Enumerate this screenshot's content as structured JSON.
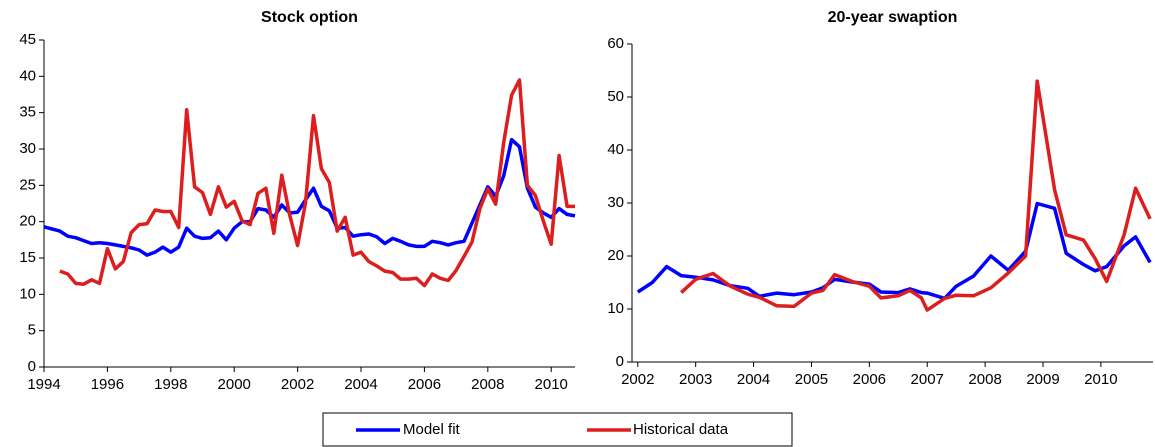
{
  "chart_data": [
    {
      "type": "line",
      "title": "Stock option",
      "x": [
        1994,
        1994.25,
        1994.5,
        1994.75,
        1995,
        1995.25,
        1995.5,
        1995.75,
        1996,
        1996.25,
        1996.5,
        1996.75,
        1997,
        1997.25,
        1997.5,
        1997.75,
        1998,
        1998.25,
        1998.5,
        1998.75,
        1999,
        1999.25,
        1999.5,
        1999.75,
        2000,
        2000.25,
        2000.5,
        2000.75,
        2001,
        2001.25,
        2001.5,
        2001.75,
        2002,
        2002.25,
        2002.5,
        2002.75,
        2003,
        2003.25,
        2003.5,
        2003.75,
        2004,
        2004.25,
        2004.5,
        2004.75,
        2005,
        2005.25,
        2005.5,
        2005.75,
        2006,
        2006.25,
        2006.5,
        2006.75,
        2007,
        2007.25,
        2007.5,
        2007.75,
        2008,
        2008.25,
        2008.5,
        2008.75,
        2009,
        2009.25,
        2009.5,
        2009.75,
        2010,
        2010.25,
        2010.5,
        2010.75
      ],
      "series": [
        {
          "name": "Model fit",
          "color": "#0000ff",
          "values": [
            19.3,
            19.0,
            18.7,
            18.0,
            17.8,
            17.4,
            17.0,
            17.1,
            17.0,
            16.8,
            16.6,
            16.4,
            16.1,
            15.4,
            15.8,
            16.5,
            15.8,
            16.5,
            19.1,
            18.0,
            17.7,
            17.8,
            18.7,
            17.5,
            19.1,
            20.0,
            20.0,
            21.8,
            21.6,
            20.6,
            22.3,
            21.2,
            21.3,
            23.0,
            24.6,
            22.1,
            21.5,
            19.1,
            19.2,
            18.0,
            18.2,
            18.3,
            17.9,
            17.0,
            17.7,
            17.3,
            16.8,
            16.6,
            16.6,
            17.3,
            17.1,
            16.8,
            17.1,
            17.3,
            19.8,
            22.3,
            24.8,
            23.5,
            26.3,
            31.3,
            30.3,
            24.6,
            22.0,
            21.2,
            20.6,
            21.8,
            21.0,
            20.8
          ]
        },
        {
          "name": "Historical data",
          "color": "#dc1e1e",
          "values": [
            null,
            null,
            13.2,
            12.8,
            11.5,
            11.4,
            12.0,
            11.5,
            16.3,
            13.5,
            14.5,
            18.5,
            19.6,
            19.7,
            21.6,
            21.4,
            21.4,
            19.2,
            35.4,
            24.8,
            24.0,
            21.0,
            24.8,
            22.0,
            22.8,
            20.1,
            19.6,
            23.9,
            24.6,
            18.4,
            26.4,
            20.9,
            16.7,
            22.6,
            34.6,
            27.3,
            25.4,
            18.7,
            20.6,
            15.4,
            15.8,
            14.5,
            13.9,
            13.2,
            13.0,
            12.1,
            12.1,
            12.2,
            11.2,
            12.8,
            12.2,
            11.9,
            13.3,
            15.2,
            17.2,
            21.8,
            24.5,
            22.4,
            30.9,
            37.4,
            39.5,
            25.0,
            23.6,
            20.1,
            16.9,
            29.1,
            22.1,
            22.1
          ]
        }
      ],
      "xlim": [
        1994,
        2010.75
      ],
      "xticks": [
        1994,
        1996,
        1998,
        2000,
        2002,
        2004,
        2006,
        2008,
        2010
      ],
      "ylim": [
        0,
        45
      ],
      "yticks": [
        0,
        5,
        10,
        15,
        20,
        25,
        30,
        35,
        40,
        45
      ]
    },
    {
      "type": "line",
      "title": "20-year swaption",
      "x": [
        2002,
        2002.25,
        2002.5,
        2002.75,
        2003,
        2003.3,
        2003.6,
        2003.9,
        2004.1,
        2004.4,
        2004.7,
        2005,
        2005.2,
        2005.4,
        2005.7,
        2006,
        2006.2,
        2006.5,
        2006.7,
        2006.9,
        2007,
        2007.3,
        2007.5,
        2007.8,
        2008.1,
        2008.4,
        2008.7,
        2008.9,
        2009.2,
        2009.4,
        2009.7,
        2009.9,
        2010.1,
        2010.4,
        2010.6,
        2010.85
      ],
      "series": [
        {
          "color": "#0000ff",
          "values": [
            13.2,
            15.0,
            18.0,
            16.3,
            16.0,
            15.5,
            14.4,
            13.9,
            12.4,
            13.0,
            12.7,
            13.2,
            14.0,
            15.6,
            15.1,
            14.7,
            13.2,
            13.1,
            13.8,
            13.1,
            13.0,
            12.0,
            14.3,
            16.2,
            20.0,
            17.3,
            20.9,
            29.9,
            29.0,
            20.5,
            18.4,
            17.2,
            18.0,
            21.9,
            23.6,
            18.8
          ]
        },
        {
          "color": "#dc1e1e",
          "values": [
            null,
            null,
            null,
            13.1,
            15.6,
            16.7,
            14.3,
            12.8,
            12.2,
            10.6,
            10.5,
            13.0,
            13.5,
            16.5,
            15.2,
            14.3,
            12.1,
            12.5,
            13.5,
            12.1,
            9.8,
            12.0,
            12.6,
            12.5,
            14.0,
            16.8,
            20.0,
            53.0,
            32.5,
            24.0,
            23.0,
            19.5,
            15.2,
            24.0,
            32.8,
            27.0
          ]
        }
      ],
      "xlim": [
        2001.9,
        2010.9
      ],
      "xticks": [
        2002,
        2003,
        2004,
        2005,
        2006,
        2007,
        2008,
        2009,
        2010
      ],
      "ylim": [
        0,
        60
      ],
      "yticks": [
        0,
        10,
        20,
        30,
        40,
        50,
        60
      ]
    }
  ]
}
